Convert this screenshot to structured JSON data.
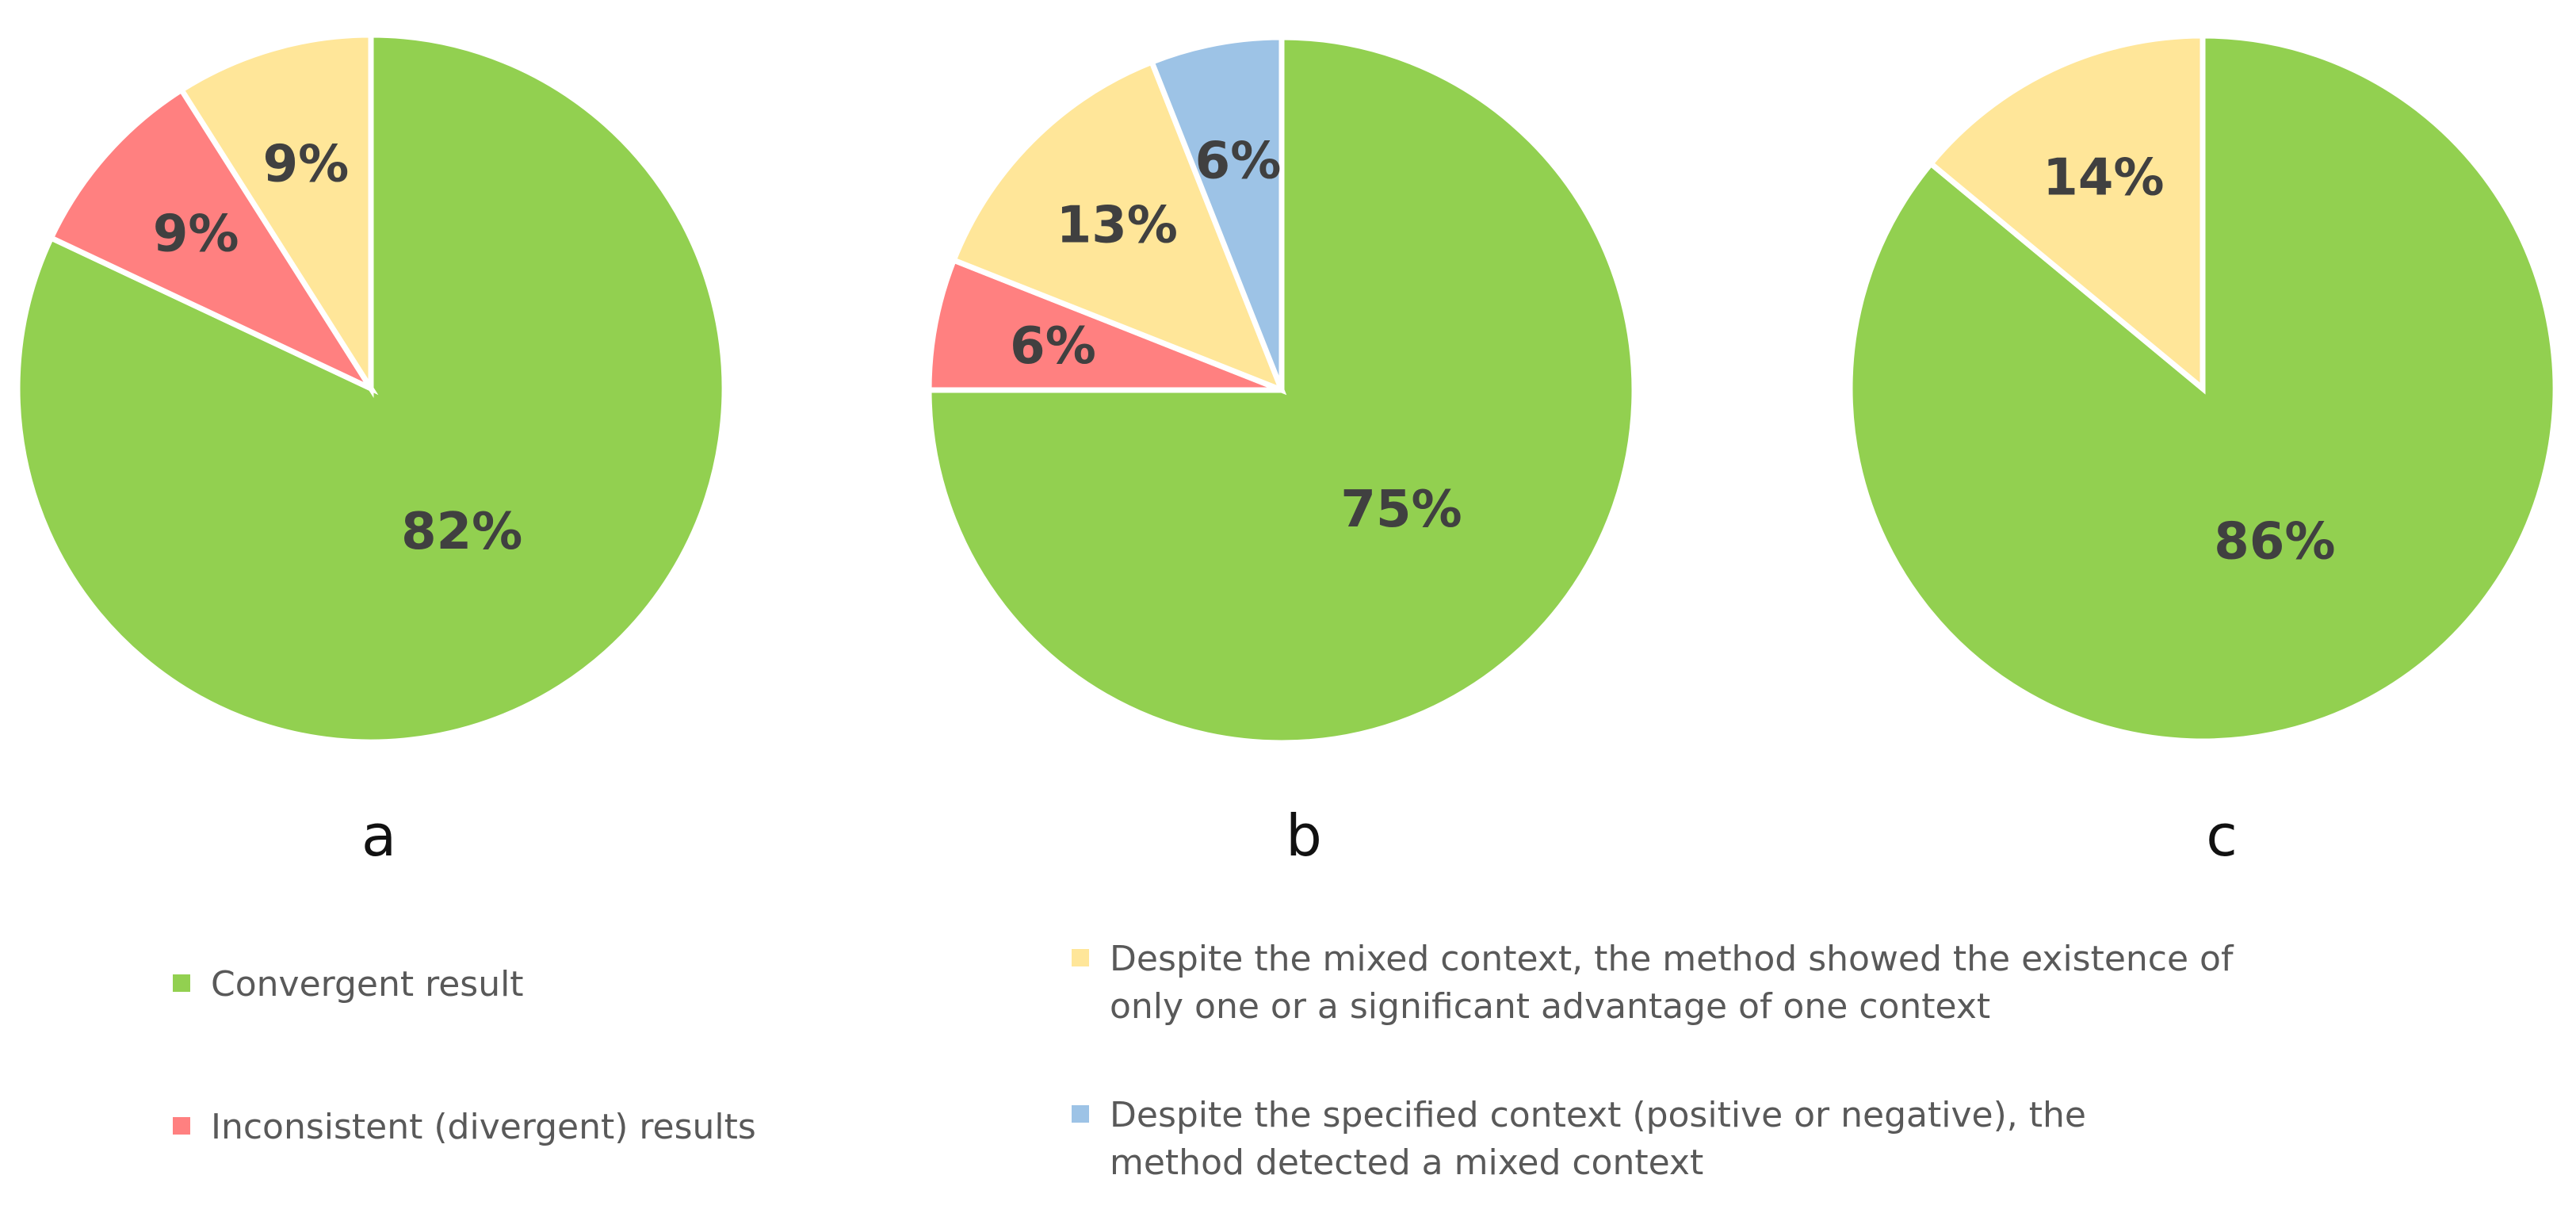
{
  "colors": {
    "convergent": "#92D050",
    "inconsistent": "#FF8080",
    "single_context": "#FFE699",
    "mixed_detected": "#9DC3E6"
  },
  "chart_data": [
    {
      "type": "pie",
      "panel_label": "a",
      "start": "12 o'clock",
      "direction": "clockwise",
      "slices": [
        {
          "key": "convergent",
          "value": 82,
          "label": "82%"
        },
        {
          "key": "inconsistent",
          "value": 9,
          "label": "9%"
        },
        {
          "key": "single_context",
          "value": 9,
          "label": "9%"
        }
      ]
    },
    {
      "type": "pie",
      "panel_label": "b",
      "start": "12 o'clock",
      "direction": "clockwise",
      "slices": [
        {
          "key": "convergent",
          "value": 75,
          "label": "75%"
        },
        {
          "key": "inconsistent",
          "value": 6,
          "label": "6%"
        },
        {
          "key": "single_context",
          "value": 13,
          "label": "13%"
        },
        {
          "key": "mixed_detected",
          "value": 6,
          "label": "6%"
        }
      ]
    },
    {
      "type": "pie",
      "panel_label": "c",
      "start": "12 o'clock",
      "direction": "clockwise",
      "slices": [
        {
          "key": "convergent",
          "value": 86,
          "label": "86%"
        },
        {
          "key": "single_context",
          "value": 14,
          "label": "14%"
        }
      ]
    }
  ],
  "legend": {
    "convergent": "Convergent result",
    "inconsistent": "Inconsistent (divergent) results",
    "single_context_line1": "Despite the mixed context, the method showed the existence of",
    "single_context_line2": "only one or a significant advantage of one context",
    "mixed_detected_line1": "Despite the specified context (positive or negative), the",
    "mixed_detected_line2": "method detected a mixed context"
  }
}
